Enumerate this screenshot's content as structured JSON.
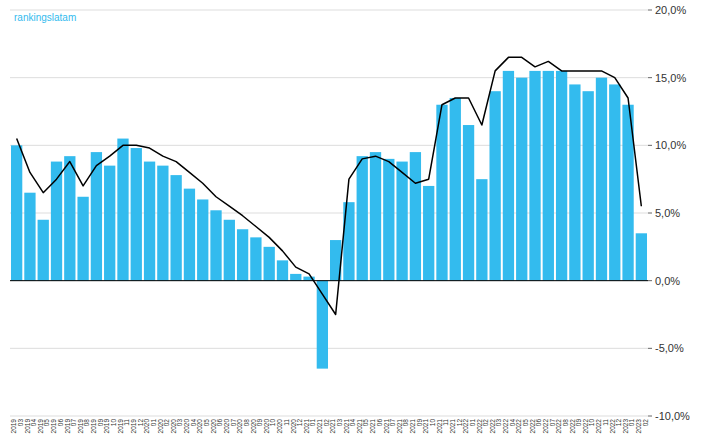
{
  "chart_data": {
    "type": "bar",
    "categories": [
      "2019\n03",
      "2019\n04",
      "2019\n05",
      "2019\n06",
      "2019\n07",
      "2019\n08",
      "2019\n09",
      "2019\n10",
      "2019\n11",
      "2019\n12",
      "2020\n01",
      "2020\n02",
      "2020\n03",
      "2020\n04",
      "2020\n05",
      "2020\n06",
      "2020\n07",
      "2020\n08",
      "2020\n09",
      "2020\n10",
      "2020\n11",
      "2020\n12",
      "2021\n01",
      "2021\n02",
      "2021\n03",
      "2021\n04",
      "2021\n05",
      "2021\n06",
      "2021\n07",
      "2021\n08",
      "2021\n09",
      "2021\n10",
      "2021\n11",
      "2021\n12",
      "2022\n01",
      "2022\n02",
      "2022\n03",
      "2022\n04",
      "2022\n05",
      "2022\n06",
      "2022\n07",
      "2022\n08",
      "2022\n09",
      "2022\n10",
      "2022\n11",
      "2022\n12",
      "2023\n01",
      "2023\n02"
    ],
    "series": [
      {
        "type": "bar",
        "color": "#33BBEE",
        "values": [
          10.0,
          6.5,
          4.5,
          8.8,
          9.2,
          6.2,
          9.5,
          8.5,
          10.5,
          9.8,
          8.8,
          8.5,
          7.8,
          6.8,
          6.0,
          5.2,
          4.5,
          3.8,
          3.2,
          2.5,
          1.5,
          0.5,
          0.3,
          -6.5,
          3.0,
          5.8,
          9.2,
          9.5,
          9.0,
          8.8,
          9.5,
          7.0,
          13.0,
          13.5,
          11.5,
          7.5,
          14.0,
          15.5,
          15.0,
          15.5,
          15.5,
          15.5,
          14.5,
          14.0,
          15.0,
          14.5,
          13.0,
          3.5
        ]
      },
      {
        "type": "line",
        "color": "#000000",
        "values": [
          10.5,
          8.0,
          6.5,
          7.5,
          8.8,
          7.0,
          8.5,
          9.2,
          10.0,
          10.0,
          9.8,
          9.2,
          8.8,
          8.0,
          7.2,
          6.2,
          5.5,
          4.8,
          4.0,
          3.2,
          2.2,
          1.0,
          0.5,
          -1.0,
          -2.5,
          7.5,
          9.0,
          9.2,
          8.8,
          8.0,
          7.2,
          7.5,
          13.0,
          13.5,
          13.5,
          11.5,
          15.5,
          16.5,
          16.5,
          15.8,
          16.2,
          15.5,
          15.5,
          15.5,
          15.5,
          15.0,
          13.5,
          5.5
        ]
      }
    ],
    "ylim": [
      -10.0,
      20.0
    ],
    "yticks": [
      {
        "value": -10.0,
        "label": "-10,0%"
      },
      {
        "value": -5.0,
        "label": "-5,0%"
      },
      {
        "value": 0.0,
        "label": "0,0%"
      },
      {
        "value": 5.0,
        "label": "5,0%"
      },
      {
        "value": 10.0,
        "label": "10,0%"
      },
      {
        "value": 15.0,
        "label": "15,0%"
      },
      {
        "value": 20.0,
        "label": "20,0%"
      }
    ],
    "grid": true,
    "annotations": [
      {
        "text": "rankingslatam",
        "color": "#33BBEE"
      }
    ]
  }
}
